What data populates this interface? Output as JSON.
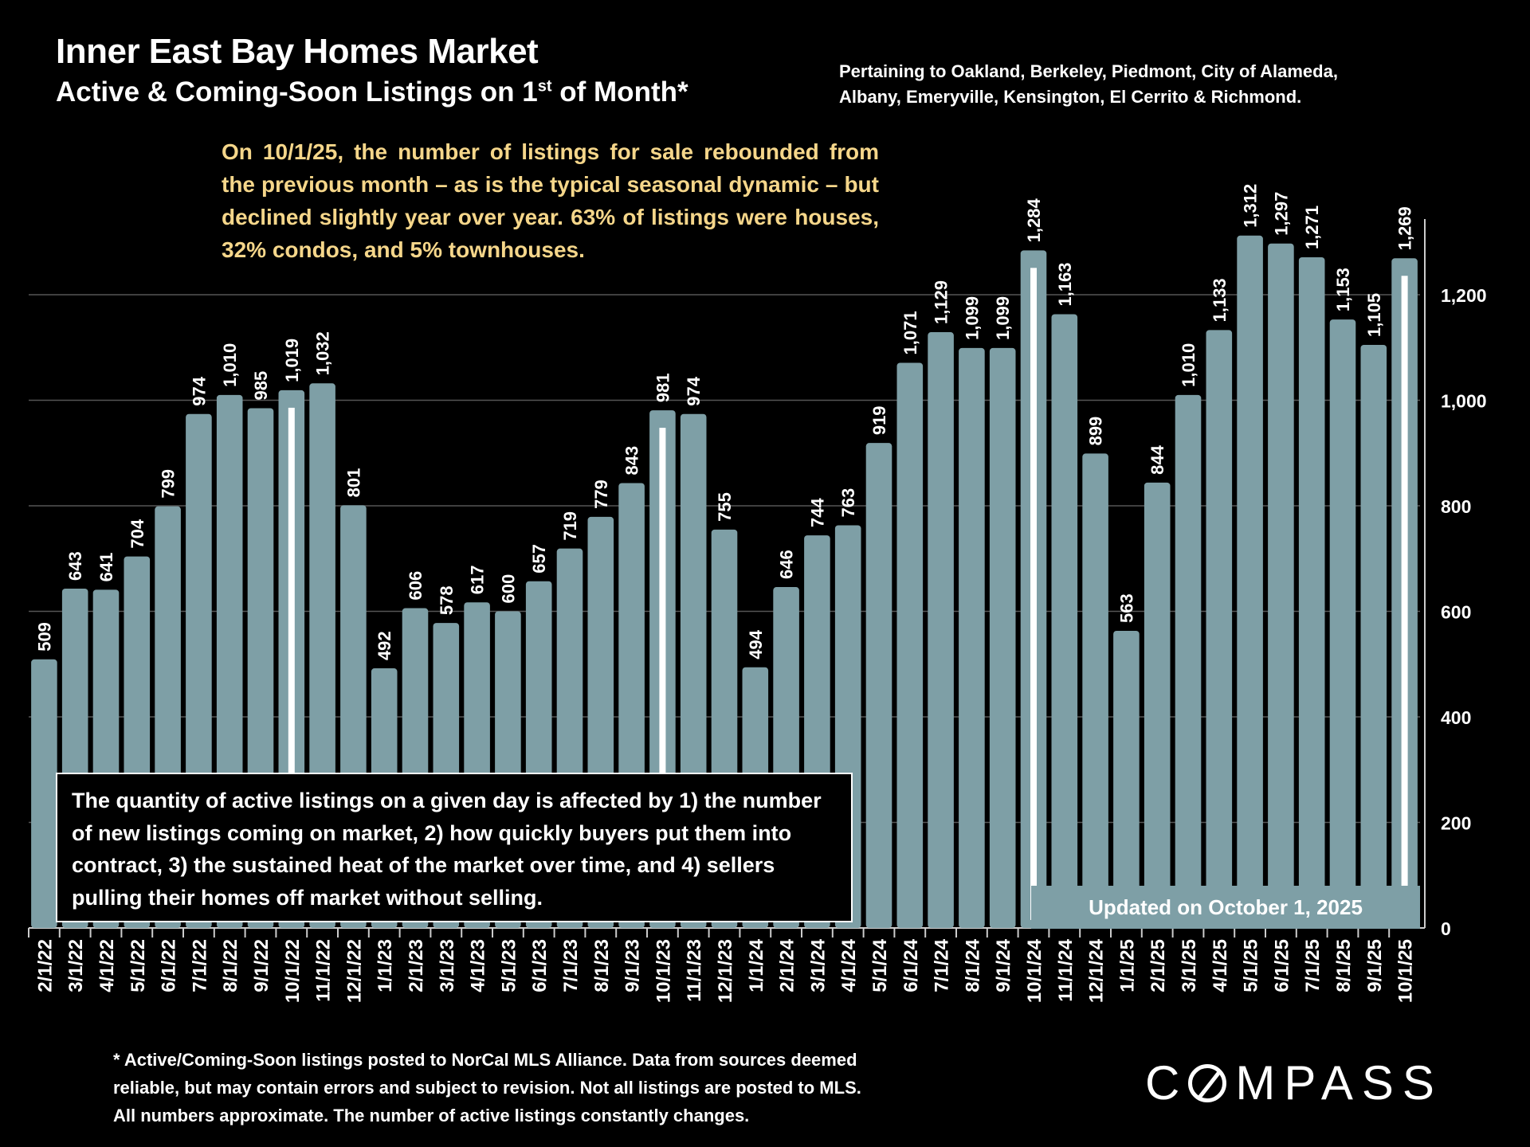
{
  "header": {
    "title": "Inner East Bay Homes Market",
    "subtitle_main": "Active & Coming-Soon Listings on 1",
    "subtitle_sup": "st",
    "subtitle_tail": " of Month*",
    "pertaining_line1": "Pertaining to Oakland, Berkeley, Piedmont, City of Alameda,",
    "pertaining_line2": "Albany, Emeryville, Kensington, El Cerrito & Richmond."
  },
  "commentary": "On 10/1/25, the number of listings for sale rebounded from the previous month – as is the typical seasonal dynamic – but declined slightly year over year. 63% of listings were houses, 32% condos, and 5% townhouses.",
  "note": "The quantity of active listings on a given day is affected by 1) the number of new listings coming on market, 2) how quickly buyers put them into contract, 3) the sustained heat of the market over time, and 4) sellers pulling their homes off market without selling.",
  "updated": "Updated on October 1, 2025",
  "footnote": {
    "line1": "* Active/Coming-Soon listings posted to NorCal MLS Alliance.  Data from sources deemed",
    "line2": "reliable, but may contain errors and subject to revision.  Not all listings are posted to MLS.",
    "line3": "All numbers approximate. The number of active listings constantly changes."
  },
  "logo": {
    "rest": "MPASS",
    "first": "C"
  },
  "colors": {
    "bar": "#7e9fa6",
    "background": "#000000",
    "commentary": "#f5d68a",
    "grid": "#555555"
  },
  "chart_data": {
    "type": "bar",
    "categories": [
      "2/1/22",
      "3/1/22",
      "4/1/22",
      "5/1/22",
      "6/1/22",
      "7/1/22",
      "8/1/22",
      "9/1/22",
      "10/1/22",
      "11/1/22",
      "12/1/22",
      "1/1/23",
      "2/1/23",
      "3/1/23",
      "4/1/23",
      "5/1/23",
      "6/1/23",
      "7/1/23",
      "8/1/23",
      "9/1/23",
      "10/1/23",
      "11/1/23",
      "12/1/23",
      "1/1/24",
      "2/1/24",
      "3/1/24",
      "4/1/24",
      "5/1/24",
      "6/1/24",
      "7/1/24",
      "8/1/24",
      "9/1/24",
      "10/1/24",
      "11/1/24",
      "12/1/24",
      "1/1/25",
      "2/1/25",
      "3/1/25",
      "4/1/25",
      "5/1/25",
      "6/1/25",
      "7/1/25",
      "8/1/25",
      "9/1/25",
      "10/1/25"
    ],
    "values": [
      509,
      643,
      641,
      704,
      799,
      974,
      1010,
      985,
      1019,
      1032,
      801,
      492,
      606,
      578,
      617,
      600,
      657,
      719,
      779,
      843,
      981,
      974,
      755,
      494,
      646,
      744,
      763,
      919,
      1071,
      1129,
      1099,
      1099,
      1284,
      1163,
      899,
      563,
      844,
      1010,
      1133,
      1312,
      1297,
      1271,
      1153,
      1105,
      1269
    ],
    "labels": [
      "509",
      "643",
      "641",
      "704",
      "799",
      "974",
      "1,010",
      "985",
      "1,019",
      "1,032",
      "801",
      "492",
      "606",
      "578",
      "617",
      "600",
      "657",
      "719",
      "779",
      "843",
      "981",
      "974",
      "755",
      "494",
      "646",
      "744",
      "763",
      "919",
      "1,071",
      "1,129",
      "1,099",
      "1,099",
      "1,284",
      "1,163",
      "899",
      "563",
      "844",
      "1,010",
      "1,133",
      "1,312",
      "1,297",
      "1,271",
      "1,153",
      "1,105",
      "1,269"
    ],
    "highlighted": [
      "10/1/22",
      "10/1/23",
      "10/1/24",
      "10/1/25"
    ],
    "yticks": [
      "0",
      "200",
      "400",
      "600",
      "800",
      "1,000",
      "1,200"
    ],
    "ytick_values": [
      0,
      200,
      400,
      600,
      800,
      1000,
      1200
    ],
    "ylim": [
      0,
      1350
    ],
    "y_axis_side": "right",
    "grid": true
  }
}
